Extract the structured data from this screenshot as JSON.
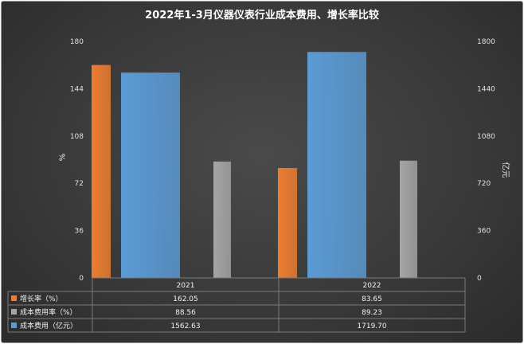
{
  "chart_data": {
    "type": "bar",
    "title": "2022年1-3月仪器仪表行业成本费用、增长率比较",
    "categories": [
      "2021",
      "2022"
    ],
    "ylabel": "%",
    "y2label": "亿元",
    "ylim": [
      0,
      180
    ],
    "y2lim": [
      0,
      1800
    ],
    "y_ticks": [
      "0",
      "36",
      "72",
      "108",
      "144",
      "180"
    ],
    "y2_ticks": [
      "0",
      "360",
      "720",
      "1080",
      "1440",
      "1800"
    ],
    "grid": false,
    "legend": "data-table",
    "series": [
      {
        "name": "增长率（%）",
        "axis": "left",
        "color": "#ED7D31",
        "values": [
          162.05,
          83.65
        ],
        "labels": [
          "162.05",
          "83.65"
        ]
      },
      {
        "name": "成本费用率（%）",
        "axis": "left",
        "color": "#A5A5A5",
        "values": [
          88.56,
          89.23
        ],
        "labels": [
          "88.56",
          "89.23"
        ]
      },
      {
        "name": "成本费用（亿元）",
        "axis": "right",
        "color": "#5B9BD5",
        "values": [
          1562.63,
          1719.7
        ],
        "labels": [
          "1562.63",
          "1719.70"
        ]
      }
    ]
  }
}
